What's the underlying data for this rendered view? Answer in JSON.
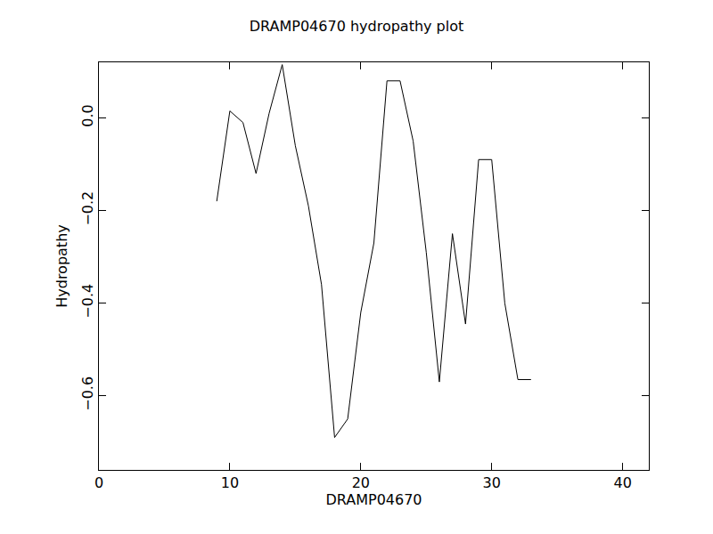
{
  "chart_data": {
    "type": "line",
    "title": "DRAMP04670 hydropathy plot",
    "x_label": "DRAMP04670",
    "y_label": "Hydropathy",
    "x": [
      9,
      10,
      11,
      12,
      13,
      14,
      15,
      16,
      17,
      18,
      19,
      20,
      21,
      22,
      23,
      24,
      25,
      26,
      27,
      28,
      29,
      30,
      31,
      32,
      33
    ],
    "values": [
      -0.18,
      0.015,
      -0.01,
      -0.12,
      0.01,
      0.115,
      -0.06,
      -0.19,
      -0.36,
      -0.69,
      -0.65,
      -0.42,
      -0.27,
      0.08,
      0.08,
      -0.05,
      -0.29,
      -0.57,
      -0.25,
      -0.445,
      -0.09,
      -0.09,
      -0.4,
      -0.565,
      -0.565
    ],
    "color": "#000000",
    "xlim": [
      0,
      42
    ],
    "xticks": [
      0,
      10,
      20,
      30,
      40
    ],
    "ylim": [
      -0.76,
      0.12
    ],
    "yticks": [
      {
        "value": -0.6,
        "label": "−0.6"
      },
      {
        "value": -0.4,
        "label": "−0.4"
      },
      {
        "value": -0.2,
        "label": "−0.2"
      },
      {
        "value": 0,
        "label": "0.0"
      }
    ],
    "grid": false
  }
}
